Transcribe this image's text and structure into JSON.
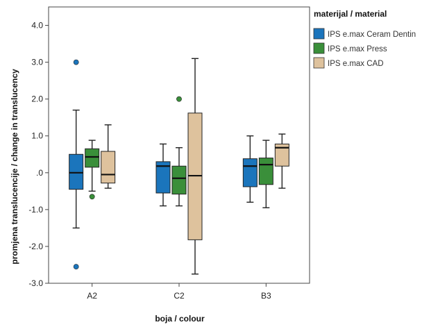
{
  "chart_data": {
    "type": "boxplot",
    "xlabel": "boja / colour",
    "ylabel": "promjena translucencije / change in translucency",
    "categories": [
      "A2",
      "C2",
      "B3"
    ],
    "ylim": [
      -3.0,
      4.5
    ],
    "yticks": [
      4.0,
      3.0,
      2.0,
      1.0,
      0.0,
      -1.0,
      -2.0,
      -3.0
    ],
    "ytick_labels": [
      "4.0",
      "3.0",
      "2.0",
      "1.0",
      ".0",
      "-1.0",
      "-2.0",
      "-3.0"
    ],
    "legend": {
      "title": "materijal / material",
      "placement": "right"
    },
    "series": [
      {
        "name": "IPS e.max Ceram Dentin",
        "color": "#1b75bc",
        "boxes": [
          {
            "whisker_low": -1.5,
            "q1": -0.45,
            "median": 0.0,
            "q3": 0.5,
            "whisker_high": 1.7,
            "outliers": [
              3.0,
              -2.55
            ]
          },
          {
            "whisker_low": -0.9,
            "q1": -0.55,
            "median": 0.18,
            "q3": 0.3,
            "whisker_high": 0.78,
            "outliers": []
          },
          {
            "whisker_low": -0.8,
            "q1": -0.38,
            "median": 0.18,
            "q3": 0.38,
            "whisker_high": 1.0,
            "outliers": []
          }
        ]
      },
      {
        "name": "IPS e.max Press",
        "color": "#3a8f3a",
        "boxes": [
          {
            "whisker_low": -0.5,
            "q1": 0.15,
            "median": 0.43,
            "q3": 0.65,
            "whisker_high": 0.88,
            "outliers": [
              -0.65
            ]
          },
          {
            "whisker_low": -0.9,
            "q1": -0.58,
            "median": -0.15,
            "q3": 0.18,
            "whisker_high": 0.68,
            "outliers": [
              2.0
            ]
          },
          {
            "whisker_low": -0.95,
            "q1": -0.32,
            "median": 0.22,
            "q3": 0.4,
            "whisker_high": 0.88,
            "outliers": []
          }
        ]
      },
      {
        "name": "IPS e.max CAD",
        "color": "#dec29d",
        "boxes": [
          {
            "whisker_low": -0.42,
            "q1": -0.28,
            "median": -0.05,
            "q3": 0.58,
            "whisker_high": 1.3,
            "outliers": []
          },
          {
            "whisker_low": -2.75,
            "q1": -1.82,
            "median": -0.08,
            "q3": 1.62,
            "whisker_high": 3.1,
            "outliers": []
          },
          {
            "whisker_low": -0.42,
            "q1": 0.18,
            "median": 0.68,
            "q3": 0.78,
            "whisker_high": 1.05,
            "outliers": []
          }
        ]
      }
    ]
  }
}
